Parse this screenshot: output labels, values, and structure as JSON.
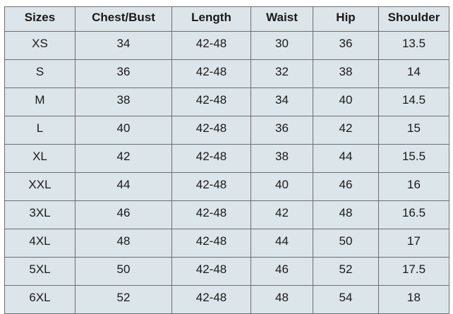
{
  "table": {
    "headers": [
      "Sizes",
      "Chest/Bust",
      "Length",
      "Waist",
      "Hip",
      "Shoulder"
    ],
    "rows": [
      [
        "XS",
        "34",
        "42-48",
        "30",
        "36",
        "13.5"
      ],
      [
        "S",
        "36",
        "42-48",
        "32",
        "38",
        "14"
      ],
      [
        "M",
        "38",
        "42-48",
        "34",
        "40",
        "14.5"
      ],
      [
        "L",
        "40",
        "42-48",
        "36",
        "42",
        "15"
      ],
      [
        "XL",
        "42",
        "42-48",
        "38",
        "44",
        "15.5"
      ],
      [
        "XXL",
        "44",
        "42-48",
        "40",
        "46",
        "16"
      ],
      [
        "3XL",
        "46",
        "42-48",
        "42",
        "48",
        "16.5"
      ],
      [
        "4XL",
        "48",
        "42-48",
        "44",
        "50",
        "17"
      ],
      [
        "5XL",
        "50",
        "42-48",
        "46",
        "52",
        "17.5"
      ],
      [
        "6XL",
        "52",
        "42-48",
        "48",
        "54",
        "18"
      ]
    ]
  },
  "colors": {
    "cell_background": "#dce5e9",
    "border": "#6b6f72"
  }
}
